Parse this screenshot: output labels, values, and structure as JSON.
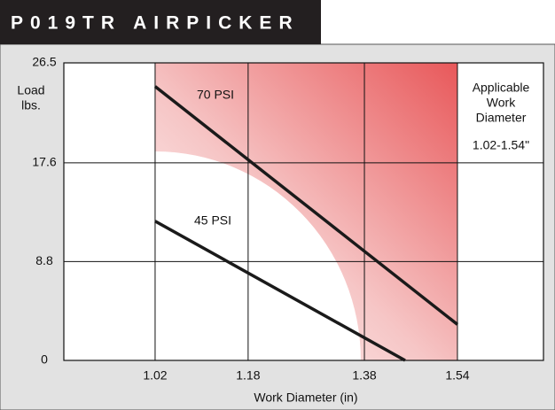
{
  "chart_data": {
    "type": "line",
    "title": "P019TR AIRPICKER",
    "y_label": [
      "Load",
      "lbs."
    ],
    "x_label": "Work Diameter (in)",
    "annotation": [
      "Applicable",
      "Work",
      "Diameter"
    ],
    "range_label": "1.02-1.54\"",
    "shaded_range": [
      1.02,
      1.54
    ],
    "xlim": [
      0.863,
      1.688
    ],
    "ylim": [
      0,
      26.5
    ],
    "xticks": [
      1.02,
      1.18,
      1.38,
      1.54
    ],
    "yticks": [
      0,
      8.8,
      17.6,
      26.5
    ],
    "grid": true,
    "series": [
      {
        "name": "70 PSI",
        "color": "#1a1a1a",
        "x": [
          1.02,
          1.54
        ],
        "values": [
          24.4,
          3.2
        ]
      },
      {
        "name": "45 PSI",
        "color": "#1a1a1a",
        "x": [
          1.02,
          1.45
        ],
        "values": [
          12.4,
          0
        ]
      }
    ]
  }
}
